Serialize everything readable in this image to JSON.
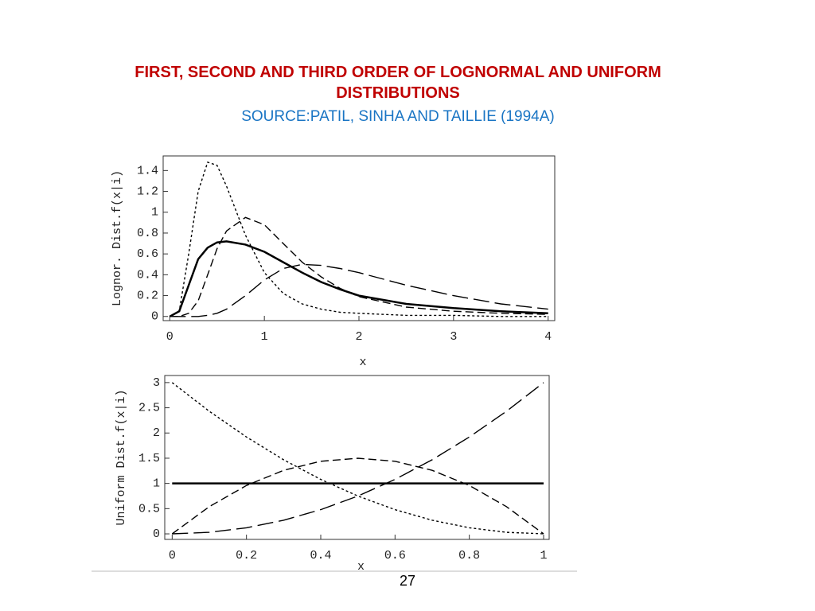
{
  "slide": {
    "title": "FIRST, SECOND AND THIRD ORDER OF LOGNORMAL AND UNIFORM DISTRIBUTIONS",
    "subtitle": "SOURCE:PATIL, SINHA AND TAILLIE (1994A)",
    "page_number": "27"
  },
  "chart_data": [
    {
      "type": "line",
      "xlabel": "x",
      "ylabel": "Lognor. Dist.f(x|i)",
      "x": [
        0,
        0.1,
        0.2,
        0.3,
        0.4,
        0.5,
        0.6,
        0.8,
        1.0,
        1.2,
        1.4,
        1.6,
        1.8,
        2.0,
        2.5,
        3.0,
        3.5,
        4.0
      ],
      "series": [
        {
          "color": "#000000",
          "dash": "solid",
          "values": [
            0,
            0.05,
            0.3,
            0.55,
            0.66,
            0.71,
            0.72,
            0.69,
            0.62,
            0.52,
            0.42,
            0.33,
            0.26,
            0.2,
            0.12,
            0.08,
            0.05,
            0.03
          ]
        },
        {
          "color": "#000000",
          "dash": "dotted",
          "values": [
            0,
            0.05,
            0.6,
            1.2,
            1.48,
            1.45,
            1.25,
            0.78,
            0.42,
            0.22,
            0.12,
            0.07,
            0.04,
            0.03,
            0.01,
            0.01,
            0,
            0
          ]
        },
        {
          "color": "#000000",
          "dash": "dashed",
          "values": [
            0,
            0,
            0.03,
            0.15,
            0.4,
            0.65,
            0.82,
            0.95,
            0.88,
            0.7,
            0.52,
            0.38,
            0.27,
            0.19,
            0.09,
            0.05,
            0.03,
            0.02
          ]
        },
        {
          "color": "#000000",
          "dash": "long-dashed",
          "values": [
            0,
            0,
            0,
            0,
            0.01,
            0.03,
            0.07,
            0.2,
            0.35,
            0.46,
            0.5,
            0.49,
            0.46,
            0.42,
            0.3,
            0.2,
            0.12,
            0.07
          ]
        }
      ],
      "xlim": [
        -0.07,
        4.07
      ],
      "xticks": [
        0,
        1,
        2,
        3,
        4
      ],
      "ylim": [
        -0.04,
        1.54
      ],
      "yticks": [
        0,
        0.2,
        0.4,
        0.6,
        0.8,
        1,
        1.2,
        1.4
      ],
      "grid": false
    },
    {
      "type": "line",
      "xlabel": "x",
      "ylabel": "Uniform Dist.f(x|i)",
      "x": [
        0,
        0.1,
        0.2,
        0.3,
        0.4,
        0.5,
        0.6,
        0.7,
        0.8,
        0.9,
        1
      ],
      "series": [
        {
          "color": "#000000",
          "dash": "solid",
          "values": [
            1,
            1,
            1,
            1,
            1,
            1,
            1,
            1,
            1,
            1,
            1
          ]
        },
        {
          "color": "#000000",
          "dash": "dotted",
          "values": [
            3,
            2.43,
            1.92,
            1.47,
            1.08,
            0.75,
            0.48,
            0.27,
            0.12,
            0.03,
            0
          ]
        },
        {
          "color": "#000000",
          "dash": "dashed",
          "values": [
            0,
            0.54,
            0.96,
            1.26,
            1.44,
            1.5,
            1.44,
            1.26,
            0.96,
            0.54,
            0
          ]
        },
        {
          "color": "#000000",
          "dash": "long-dashed",
          "values": [
            0,
            0.03,
            0.12,
            0.27,
            0.48,
            0.75,
            1.08,
            1.47,
            1.92,
            2.43,
            3
          ]
        }
      ],
      "xlim": [
        -0.02,
        1.015
      ],
      "xticks": [
        0,
        0.2,
        0.4,
        0.6,
        0.8,
        1
      ],
      "ylim": [
        -0.11,
        3.14
      ],
      "yticks": [
        0,
        0.5,
        1,
        1.5,
        2,
        2.5,
        3
      ],
      "grid": false
    }
  ]
}
